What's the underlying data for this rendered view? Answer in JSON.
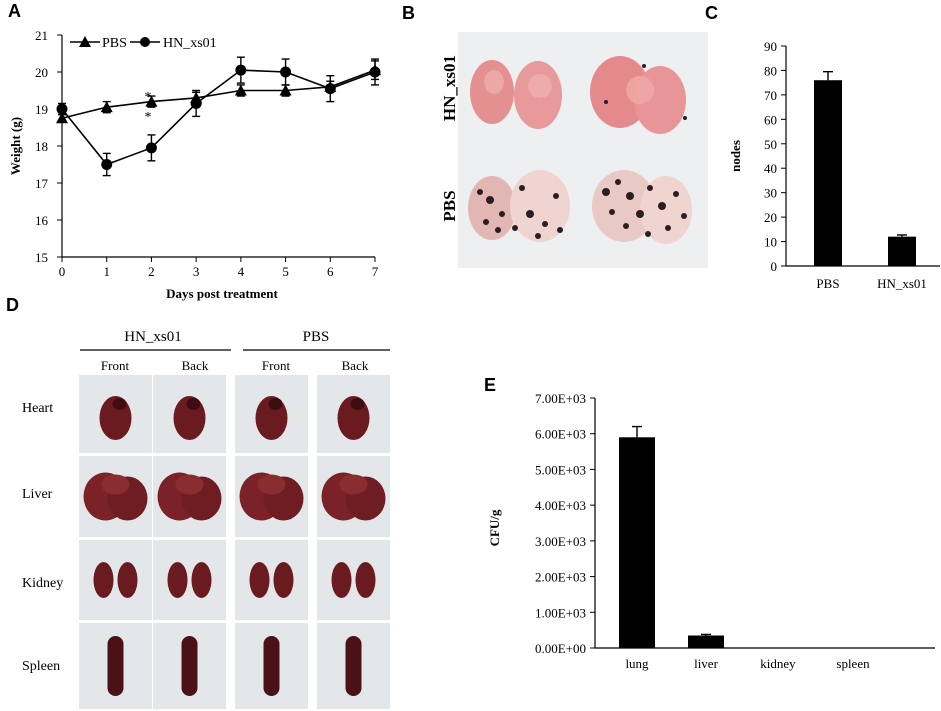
{
  "panels": {
    "a": "A",
    "b": "B",
    "c": "C",
    "d": "D",
    "e": "E"
  },
  "colors": {
    "ink": "#000000",
    "photo_bg": "#e9ecef",
    "lung_healthy": "#e79a99",
    "lung_nodule": "#2a1e22",
    "lung_pale": "#efd4cf",
    "organ": "#6a1b20",
    "organ_dark": "#3e0d12",
    "grid_photo": "#dfe3e8"
  },
  "chart_data": [
    {
      "id": "A",
      "type": "line",
      "title": "",
      "xlabel": "Days post treatment",
      "ylabel": "Weight (g)",
      "x": [
        0,
        1,
        2,
        3,
        4,
        5,
        6,
        7
      ],
      "xlim": [
        0,
        7
      ],
      "ylim": [
        15,
        21
      ],
      "yticks": [
        15,
        16,
        17,
        18,
        19,
        20,
        21
      ],
      "xticks": [
        0,
        1,
        2,
        3,
        4,
        5,
        6,
        7
      ],
      "series": [
        {
          "name": "PBS",
          "marker": "triangle",
          "values": [
            18.75,
            19.05,
            19.2,
            19.3,
            19.5,
            19.5,
            19.6,
            20.05
          ],
          "errors": [
            0.1,
            0.15,
            0.15,
            0.15,
            0.15,
            0.15,
            0.15,
            0.25
          ]
        },
        {
          "name": "HN_xs01",
          "marker": "circle",
          "values": [
            19.0,
            17.5,
            17.95,
            19.15,
            20.05,
            20.0,
            19.55,
            20.0
          ],
          "errors": [
            0.15,
            0.3,
            0.35,
            0.35,
            0.35,
            0.35,
            0.35,
            0.35
          ]
        }
      ],
      "annotations": [
        {
          "x": 2,
          "text": "*"
        },
        {
          "x": 2,
          "text": "*"
        }
      ],
      "legend": "top-left"
    },
    {
      "id": "C",
      "type": "bar",
      "categories": [
        "PBS",
        "HN_xs01"
      ],
      "values": [
        76,
        12
      ],
      "errors": [
        3.5,
        0.7
      ],
      "ylabel": "nodes",
      "xlabel": "",
      "ylim": [
        0,
        90
      ],
      "yticks": [
        0,
        10,
        20,
        30,
        40,
        50,
        60,
        70,
        80,
        90
      ]
    },
    {
      "id": "E",
      "type": "bar",
      "categories": [
        "lung",
        "liver",
        "kidney",
        "spleen"
      ],
      "values": [
        5900,
        350,
        0,
        0
      ],
      "errors": [
        300,
        30,
        0,
        0
      ],
      "ylabel": "CFU/g",
      "xlabel": "",
      "ylim": [
        0,
        7000
      ],
      "ytick_labels": [
        "0.00E+00",
        "1.00E+03",
        "2.00E+03",
        "3.00E+03",
        "4.00E+03",
        "5.00E+03",
        "6.00E+03",
        "7.00E+03"
      ]
    }
  ],
  "panel_b": {
    "rows": [
      "HN_xs01",
      "PBS"
    ]
  },
  "panel_d": {
    "groups": [
      "HN_xs01",
      "PBS"
    ],
    "subcolumns": [
      "Front",
      "Back",
      "Front",
      "Back"
    ],
    "rows": [
      "Heart",
      "Liver",
      "Kidney",
      "Spleen"
    ]
  }
}
